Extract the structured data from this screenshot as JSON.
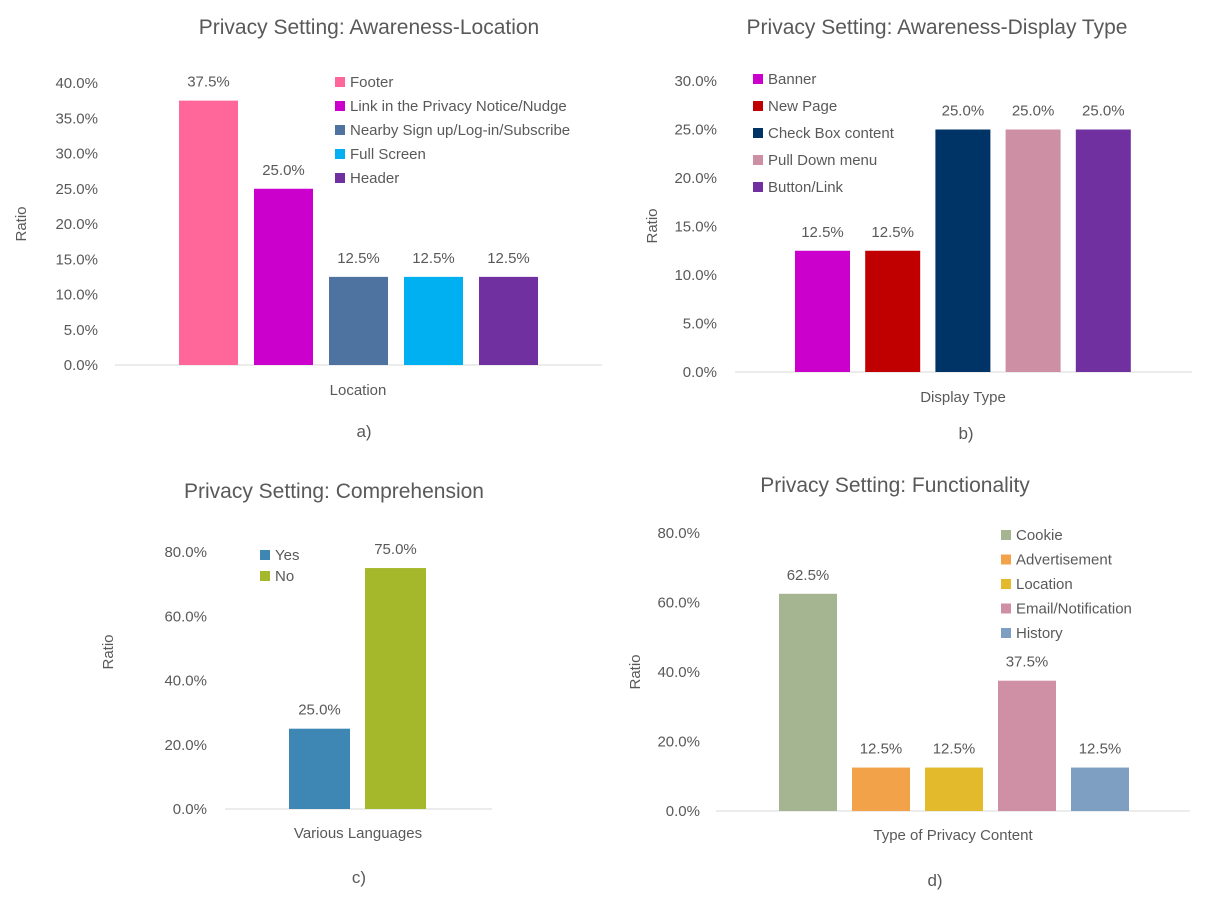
{
  "chart_data": [
    {
      "type": "bar",
      "title": "Privacy Setting: Awareness-Location",
      "xlabel": "Location",
      "ylabel": "Ratio",
      "caption": "a)",
      "ylim": [
        0,
        40
      ],
      "yticks": [
        "0.0%",
        "5.0%",
        "10.0%",
        "15.0%",
        "20.0%",
        "25.0%",
        "30.0%",
        "35.0%",
        "40.0%"
      ],
      "legend_position": "top-right",
      "series": [
        {
          "name": "Footer",
          "value": 37.5,
          "label": "37.5%",
          "color": "#ff6699"
        },
        {
          "name": "Link in the Privacy Notice/Nudge",
          "value": 25.0,
          "label": "25.0%",
          "color": "#cc00cc"
        },
        {
          "name": "Nearby Sign up/Log-in/Subscribe",
          "value": 12.5,
          "label": "12.5%",
          "color": "#4e73a0"
        },
        {
          "name": "Full Screen",
          "value": 12.5,
          "label": "12.5%",
          "color": "#00b0f0"
        },
        {
          "name": "Header",
          "value": 12.5,
          "label": "12.5%",
          "color": "#7030a0"
        }
      ]
    },
    {
      "type": "bar",
      "title": "Privacy Setting: Awareness-Display Type",
      "xlabel": "Display Type",
      "ylabel": "Ratio",
      "caption": "b)",
      "ylim": [
        0,
        30
      ],
      "yticks": [
        "0.0%",
        "5.0%",
        "10.0%",
        "15.0%",
        "20.0%",
        "25.0%",
        "30.0%"
      ],
      "legend_position": "top-left",
      "series": [
        {
          "name": "Banner",
          "value": 12.5,
          "label": "12.5%",
          "color": "#cc00cc"
        },
        {
          "name": "New Page",
          "value": 12.5,
          "label": "12.5%",
          "color": "#c00000"
        },
        {
          "name": "Check Box content",
          "value": 25.0,
          "label": "25.0%",
          "color": "#003366"
        },
        {
          "name": "Pull Down menu",
          "value": 25.0,
          "label": "25.0%",
          "color": "#cc8fa3"
        },
        {
          "name": "Button/Link",
          "value": 25.0,
          "label": "25.0%",
          "color": "#7030a0"
        }
      ]
    },
    {
      "type": "bar",
      "title": "Privacy Setting: Comprehension",
      "xlabel": "Various Languages",
      "ylabel": "Ratio",
      "caption": "c)",
      "ylim": [
        0,
        80
      ],
      "yticks": [
        "0.0%",
        "20.0%",
        "40.0%",
        "60.0%",
        "80.0%"
      ],
      "legend_position": "top-left",
      "series": [
        {
          "name": "Yes",
          "value": 25.0,
          "label": "25.0%",
          "color": "#3e87b5"
        },
        {
          "name": "No",
          "value": 75.0,
          "label": "75.0%",
          "color": "#a5b72a"
        }
      ]
    },
    {
      "type": "bar",
      "title": "Privacy Setting: Functionality",
      "xlabel": "Type of Privacy  Content",
      "ylabel": "Ratio",
      "caption": "d)",
      "ylim": [
        0,
        80
      ],
      "yticks": [
        "0.0%",
        "20.0%",
        "40.0%",
        "60.0%",
        "80.0%"
      ],
      "legend_position": "top-right",
      "series": [
        {
          "name": "Cookie",
          "value": 62.5,
          "label": "62.5%",
          "color": "#a6b591"
        },
        {
          "name": "Advertisement",
          "value": 12.5,
          "label": "12.5%",
          "color": "#f2a34a"
        },
        {
          "name": "Location",
          "value": 12.5,
          "label": "12.5%",
          "color": "#e3ba2c"
        },
        {
          "name": "Email/Notification",
          "value": 37.5,
          "label": "37.5%",
          "color": "#cf8fa5"
        },
        {
          "name": "History",
          "value": 12.5,
          "label": "12.5%",
          "color": "#7f9fc2"
        }
      ]
    }
  ]
}
